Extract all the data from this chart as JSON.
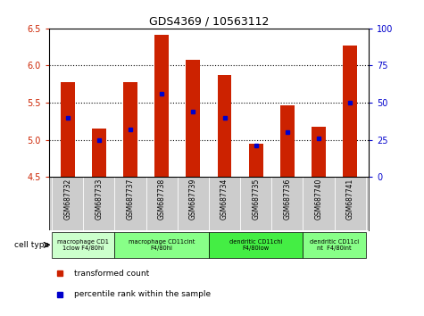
{
  "title": "GDS4369 / 10563112",
  "samples": [
    "GSM687732",
    "GSM687733",
    "GSM687737",
    "GSM687738",
    "GSM687739",
    "GSM687734",
    "GSM687735",
    "GSM687736",
    "GSM687740",
    "GSM687741"
  ],
  "transformed_counts": [
    5.78,
    5.15,
    5.78,
    6.42,
    6.08,
    5.87,
    4.95,
    5.47,
    5.18,
    6.27
  ],
  "percentile_ranks": [
    40,
    25,
    32,
    56,
    44,
    40,
    21,
    30,
    26,
    50
  ],
  "ylim_left": [
    4.5,
    6.5
  ],
  "ylim_right": [
    0,
    100
  ],
  "yticks_left": [
    4.5,
    5.0,
    5.5,
    6.0,
    6.5
  ],
  "yticks_right": [
    0,
    25,
    50,
    75,
    100
  ],
  "bar_color": "#cc2200",
  "dot_color": "#0000cc",
  "bar_bottom": 4.5,
  "cell_groups": [
    {
      "label": "macrophage CD1\n1clow F4/80hi",
      "start": 0,
      "end": 2,
      "color": "#ccffcc"
    },
    {
      "label": "macrophage CD11cint\nF4/80hi",
      "start": 2,
      "end": 5,
      "color": "#88ff88"
    },
    {
      "label": "dendritic CD11chi\nF4/80low",
      "start": 5,
      "end": 8,
      "color": "#44ee44"
    },
    {
      "label": "dendritic CD11ci\nnt  F4/80int",
      "start": 8,
      "end": 10,
      "color": "#88ff88"
    }
  ],
  "legend_items": [
    {
      "label": "transformed count",
      "color": "#cc2200"
    },
    {
      "label": "percentile rank within the sample",
      "color": "#0000cc"
    }
  ],
  "cell_type_label": "cell type",
  "background_color": "#ffffff",
  "plot_bg": "#ffffff",
  "tick_label_color_left": "#cc2200",
  "tick_label_color_right": "#0000cc",
  "sample_bg_color": "#cccccc",
  "grid_yticks": [
    5.0,
    5.5,
    6.0
  ]
}
